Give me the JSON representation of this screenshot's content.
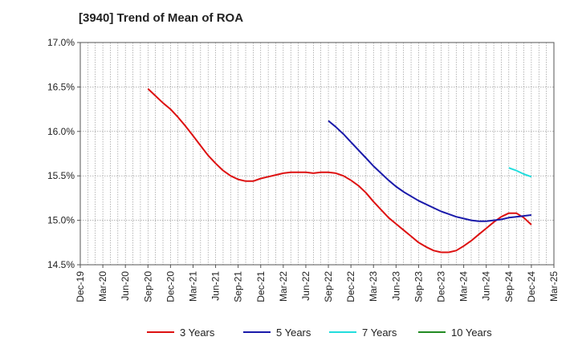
{
  "chart_data": {
    "type": "line",
    "title": "[3940]  Trend of Mean of ROA",
    "xlabel": "",
    "ylabel": "",
    "x_ticks": [
      "Dec-19",
      "Mar-20",
      "Jun-20",
      "Sep-20",
      "Dec-20",
      "Mar-21",
      "Jun-21",
      "Sep-21",
      "Dec-21",
      "Mar-22",
      "Jun-22",
      "Sep-22",
      "Dec-22",
      "Mar-23",
      "Jun-23",
      "Sep-23",
      "Dec-23",
      "Mar-24",
      "Jun-24",
      "Sep-24",
      "Dec-24",
      "Mar-25"
    ],
    "y_ticks": [
      "14.5%",
      "15.0%",
      "15.5%",
      "16.0%",
      "16.5%",
      "17.0%"
    ],
    "ylim": [
      14.5,
      17.0
    ],
    "grid": true,
    "legend_position": "bottom",
    "series": [
      {
        "name": "3 Years",
        "color": "#dd1111",
        "points": [
          [
            "Sep-20",
            16.48
          ],
          [
            "Oct-20",
            16.4
          ],
          [
            "Nov-20",
            16.32
          ],
          [
            "Dec-20",
            16.25
          ],
          [
            "Jan-21",
            16.16
          ],
          [
            "Feb-21",
            16.06
          ],
          [
            "Mar-21",
            15.95
          ],
          [
            "Apr-21",
            15.84
          ],
          [
            "May-21",
            15.73
          ],
          [
            "Jun-21",
            15.64
          ],
          [
            "Jul-21",
            15.56
          ],
          [
            "Aug-21",
            15.5
          ],
          [
            "Sep-21",
            15.46
          ],
          [
            "Oct-21",
            15.44
          ],
          [
            "Nov-21",
            15.44
          ],
          [
            "Dec-21",
            15.47
          ],
          [
            "Jan-22",
            15.49
          ],
          [
            "Feb-22",
            15.51
          ],
          [
            "Mar-22",
            15.53
          ],
          [
            "Apr-22",
            15.54
          ],
          [
            "May-22",
            15.54
          ],
          [
            "Jun-22",
            15.54
          ],
          [
            "Jul-22",
            15.53
          ],
          [
            "Aug-22",
            15.54
          ],
          [
            "Sep-22",
            15.54
          ],
          [
            "Oct-22",
            15.53
          ],
          [
            "Nov-22",
            15.5
          ],
          [
            "Dec-22",
            15.45
          ],
          [
            "Jan-23",
            15.39
          ],
          [
            "Feb-23",
            15.31
          ],
          [
            "Mar-23",
            15.21
          ],
          [
            "Apr-23",
            15.12
          ],
          [
            "May-23",
            15.03
          ],
          [
            "Jun-23",
            14.96
          ],
          [
            "Jul-23",
            14.89
          ],
          [
            "Aug-23",
            14.82
          ],
          [
            "Sep-23",
            14.75
          ],
          [
            "Oct-23",
            14.7
          ],
          [
            "Nov-23",
            14.66
          ],
          [
            "Dec-23",
            14.64
          ],
          [
            "Jan-24",
            14.64
          ],
          [
            "Feb-24",
            14.66
          ],
          [
            "Mar-24",
            14.71
          ],
          [
            "Apr-24",
            14.77
          ],
          [
            "May-24",
            14.84
          ],
          [
            "Jun-24",
            14.91
          ],
          [
            "Jul-24",
            14.98
          ],
          [
            "Aug-24",
            15.04
          ],
          [
            "Sep-24",
            15.08
          ],
          [
            "Oct-24",
            15.08
          ],
          [
            "Nov-24",
            15.03
          ],
          [
            "Dec-24",
            14.95
          ]
        ]
      },
      {
        "name": "5 Years",
        "color": "#1a1aaa",
        "points": [
          [
            "Sep-22",
            16.12
          ],
          [
            "Oct-22",
            16.05
          ],
          [
            "Nov-22",
            15.97
          ],
          [
            "Dec-22",
            15.88
          ],
          [
            "Jan-23",
            15.79
          ],
          [
            "Feb-23",
            15.7
          ],
          [
            "Mar-23",
            15.61
          ],
          [
            "Apr-23",
            15.53
          ],
          [
            "May-23",
            15.45
          ],
          [
            "Jun-23",
            15.38
          ],
          [
            "Jul-23",
            15.32
          ],
          [
            "Aug-23",
            15.27
          ],
          [
            "Sep-23",
            15.22
          ],
          [
            "Oct-23",
            15.18
          ],
          [
            "Nov-23",
            15.14
          ],
          [
            "Dec-23",
            15.1
          ],
          [
            "Jan-24",
            15.07
          ],
          [
            "Feb-24",
            15.04
          ],
          [
            "Mar-24",
            15.02
          ],
          [
            "Apr-24",
            15.0
          ],
          [
            "May-24",
            14.99
          ],
          [
            "Jun-24",
            14.99
          ],
          [
            "Jul-24",
            15.0
          ],
          [
            "Aug-24",
            15.01
          ],
          [
            "Sep-24",
            15.03
          ],
          [
            "Oct-24",
            15.04
          ],
          [
            "Nov-24",
            15.05
          ],
          [
            "Dec-24",
            15.06
          ]
        ]
      },
      {
        "name": "7 Years",
        "color": "#22dddd",
        "points": [
          [
            "Sep-24",
            15.59
          ],
          [
            "Oct-24",
            15.56
          ],
          [
            "Nov-24",
            15.52
          ],
          [
            "Dec-24",
            15.49
          ]
        ]
      },
      {
        "name": "10 Years",
        "color": "#228b22",
        "points": []
      }
    ]
  }
}
